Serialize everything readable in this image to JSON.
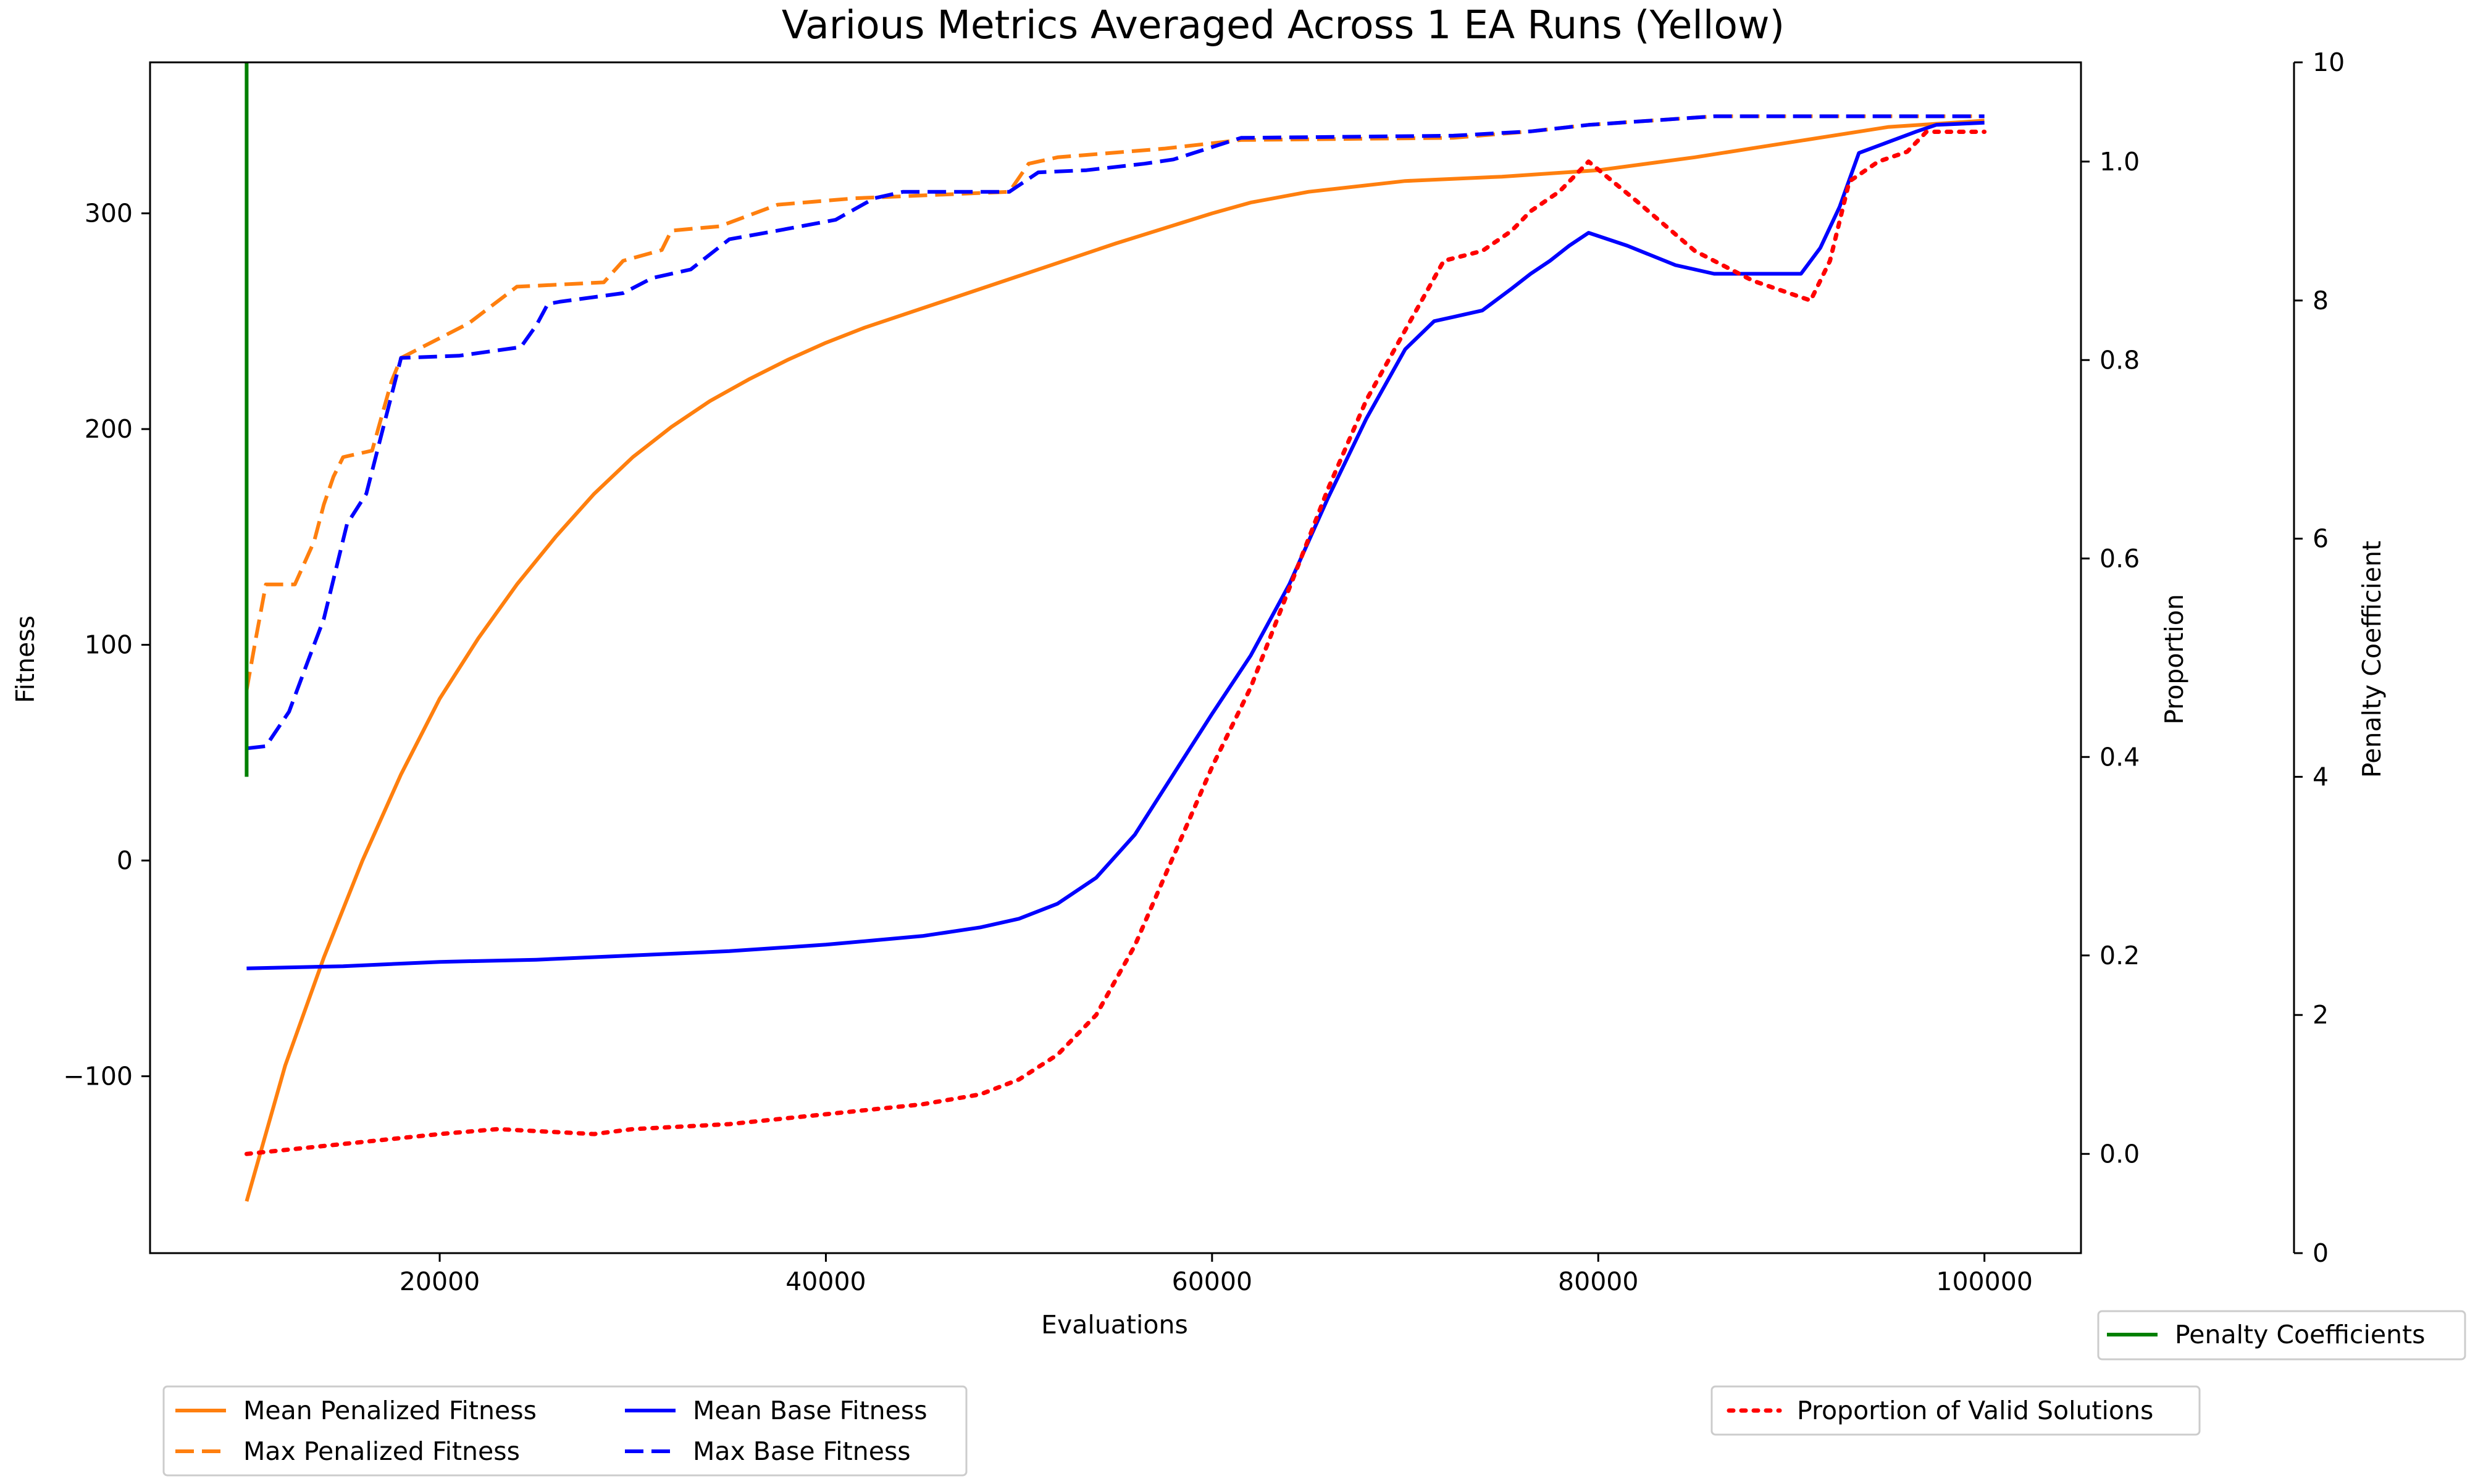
{
  "chart_data": {
    "type": "line",
    "title": "Various Metrics Averaged Across 1 EA Runs (Yellow)",
    "xlabel": "Evaluations",
    "ylabel": "Fitness",
    "y2label": "Proportion",
    "y3label": "Penalty Coefficient",
    "xlim": [
      5000,
      105000
    ],
    "ylim": [
      -182,
      370
    ],
    "y2lim": [
      -0.1,
      1.1
    ],
    "y3lim": [
      0,
      10
    ],
    "xticks": [
      20000,
      40000,
      60000,
      80000,
      100000
    ],
    "xtick_labels": [
      "20000",
      "40000",
      "60000",
      "80000",
      "100000"
    ],
    "yticks": [
      -100,
      0,
      100,
      200,
      300
    ],
    "ytick_labels": [
      "−100",
      "0",
      "100",
      "200",
      "300"
    ],
    "y2ticks": [
      0.0,
      0.2,
      0.4,
      0.6,
      0.8,
      1.0
    ],
    "y2tick_labels": [
      "0.0",
      "0.2",
      "0.4",
      "0.6",
      "0.8",
      "1.0"
    ],
    "y3ticks": [
      0,
      2,
      4,
      6,
      8,
      10
    ],
    "y3tick_labels": [
      "0",
      "2",
      "4",
      "6",
      "8",
      "10"
    ],
    "grid": false,
    "legend_left_placement": "bottom-left below axes",
    "legend_right_placement": "bottom-right below axes",
    "series": [
      {
        "name": "Mean Penalized Fitness",
        "axis": "fitness",
        "color": "#ff7f0e",
        "style": "solid",
        "x": [
          10000,
          12000,
          14000,
          16000,
          18000,
          20000,
          22000,
          24000,
          26000,
          28000,
          30000,
          32000,
          34000,
          36000,
          38000,
          40000,
          42000,
          45000,
          50000,
          55000,
          60000,
          62000,
          65000,
          70000,
          75000,
          80000,
          85000,
          90000,
          95000,
          100000
        ],
        "y": [
          -158,
          -95,
          -45,
          0,
          40,
          75,
          103,
          128,
          150,
          170,
          187,
          201,
          213,
          223,
          232,
          240,
          247,
          256,
          271,
          286,
          300,
          305,
          310,
          315,
          317,
          320,
          326,
          333,
          340,
          343
        ]
      },
      {
        "name": "Max Penalized Fitness",
        "axis": "fitness",
        "color": "#ff7f0e",
        "style": "dashed",
        "x": [
          10000,
          10500,
          11000,
          12500,
          13500,
          14000,
          14500,
          15000,
          16500,
          17000,
          17500,
          18000,
          21500,
          24000,
          28500,
          29500,
          31500,
          32000,
          34500,
          37500,
          41500,
          49500,
          50500,
          52000,
          57500,
          61500,
          72500,
          76500,
          79500,
          86000,
          100000
        ],
        "y": [
          79,
          104,
          128,
          128,
          148,
          165,
          178,
          187,
          190,
          206,
          222,
          233,
          249,
          266,
          268,
          278,
          283,
          292,
          294,
          304,
          307,
          310,
          323,
          326,
          330,
          334,
          335,
          338,
          341,
          345,
          345
        ]
      },
      {
        "name": "Mean Base Fitness",
        "axis": "fitness",
        "color": "#0000ff",
        "style": "solid",
        "x": [
          10000,
          15000,
          20000,
          25000,
          30000,
          35000,
          40000,
          45000,
          48000,
          50000,
          52000,
          54000,
          56000,
          58000,
          60000,
          62000,
          64000,
          66000,
          68000,
          70000,
          71500,
          72500,
          74000,
          75500,
          76500,
          77500,
          78500,
          79500,
          81500,
          84000,
          86000,
          88000,
          90500,
          91500,
          92500,
          93500,
          95000,
          96500,
          97500,
          100000
        ],
        "y": [
          -50,
          -49,
          -47,
          -46,
          -44,
          -42,
          -39,
          -35,
          -31,
          -27,
          -20,
          -8,
          12,
          40,
          68,
          95,
          128,
          168,
          205,
          237,
          250,
          252,
          255,
          265,
          272,
          278,
          285,
          291,
          285,
          276,
          272,
          272,
          272,
          284,
          303,
          328,
          333,
          338,
          341,
          342
        ]
      },
      {
        "name": "Max Base Fitness",
        "axis": "fitness",
        "color": "#0000ff",
        "style": "dashed",
        "x": [
          10000,
          11000,
          12200,
          13200,
          14000,
          15200,
          16200,
          18000,
          21000,
          24200,
          25000,
          25600,
          26200,
          29500,
          31000,
          33000,
          35000,
          37500,
          40500,
          41500,
          42500,
          44000,
          49500,
          51000,
          53500,
          56500,
          58000,
          61500,
          72500,
          76500,
          79500,
          86000,
          100000
        ],
        "y": [
          52,
          53,
          69,
          93,
          112,
          156,
          170,
          233,
          234,
          238,
          248,
          258,
          259,
          263,
          270,
          274,
          288,
          292,
          297,
          302,
          307,
          310,
          310,
          319,
          320,
          323,
          325,
          335,
          336,
          338,
          341,
          345,
          345
        ]
      },
      {
        "name": "Proportion of Valid Solutions",
        "axis": "proportion",
        "color": "#ff0000",
        "style": "dotted",
        "x": [
          10000,
          15000,
          20000,
          23000,
          28000,
          30000,
          35000,
          40000,
          45000,
          48000,
          50000,
          52000,
          54000,
          56000,
          58000,
          60000,
          62000,
          64000,
          66000,
          68000,
          70000,
          72000,
          74000,
          75500,
          76500,
          78000,
          79500,
          82000,
          85000,
          88000,
          91000,
          92000,
          93000,
          94500,
          96000,
          97000,
          100000
        ],
        "y": [
          0.0,
          0.01,
          0.02,
          0.025,
          0.02,
          0.025,
          0.03,
          0.04,
          0.05,
          0.06,
          0.075,
          0.1,
          0.14,
          0.21,
          0.3,
          0.39,
          0.47,
          0.57,
          0.67,
          0.76,
          0.83,
          0.9,
          0.91,
          0.93,
          0.95,
          0.97,
          1.0,
          0.96,
          0.91,
          0.88,
          0.86,
          0.9,
          0.98,
          1.0,
          1.01,
          1.03,
          1.03
        ]
      },
      {
        "name": "Penalty Coefficients",
        "axis": "penalty",
        "color": "#008000",
        "style": "solid",
        "x": [
          10000,
          10000
        ],
        "y": [
          4.0,
          10.0
        ]
      }
    ]
  }
}
